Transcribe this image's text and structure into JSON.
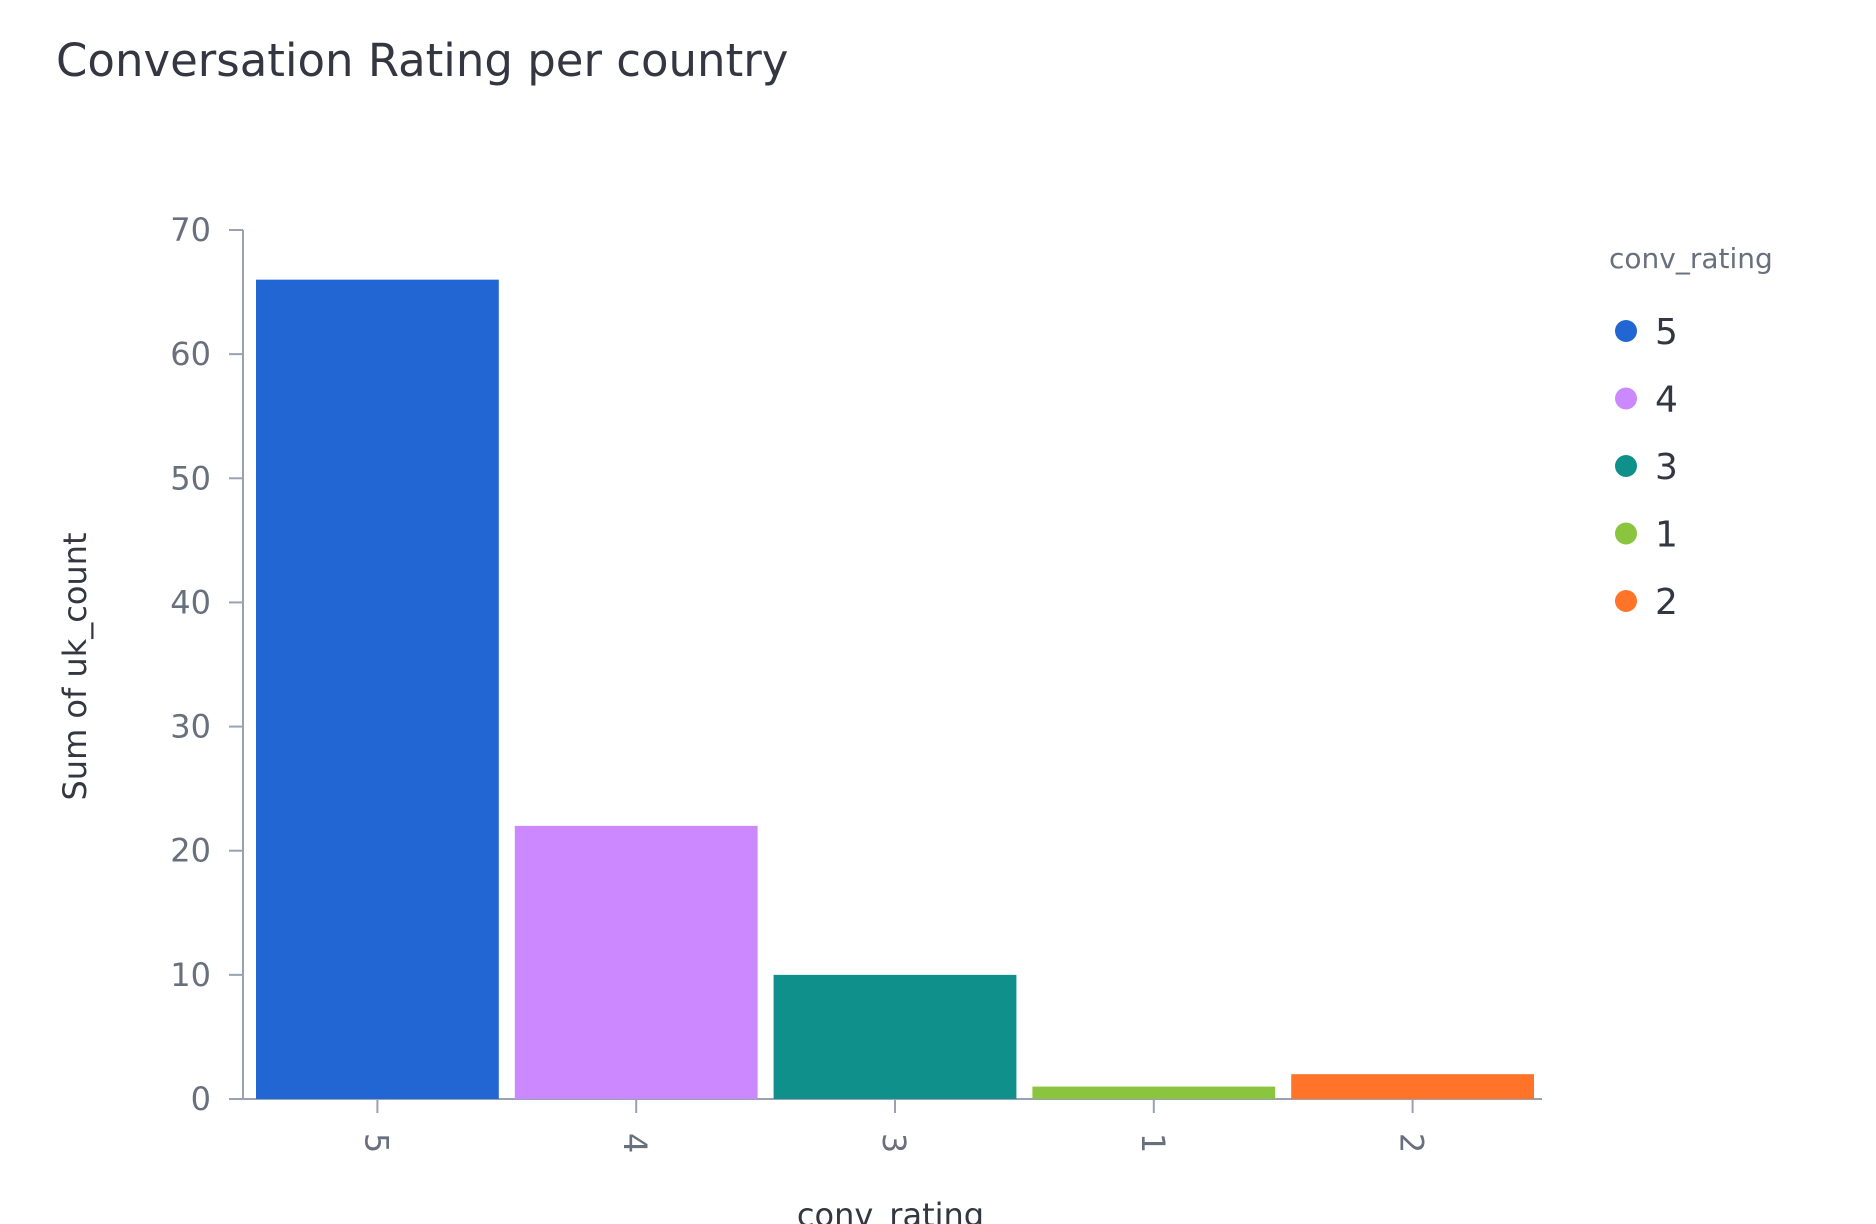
{
  "chart_data": {
    "type": "bar",
    "title": "Conversation Rating per country",
    "xlabel": "conv_rating",
    "ylabel": "Sum of uk_count",
    "categories": [
      "5",
      "4",
      "3",
      "1",
      "2"
    ],
    "values": [
      66,
      22,
      10,
      1,
      2
    ],
    "colors": [
      "#2266d3",
      "#cc88ff",
      "#10908a",
      "#8bc53f",
      "#ff7428"
    ],
    "ylim": [
      0,
      70
    ],
    "yticks": [
      0,
      10,
      20,
      30,
      40,
      50,
      60,
      70
    ],
    "grid": false,
    "x_tick_rotation": "rotated-90",
    "legend": {
      "title": "conv_rating",
      "placement": "top-right",
      "entries": [
        {
          "label": "5",
          "color": "#2266d3"
        },
        {
          "label": "4",
          "color": "#cc88ff"
        },
        {
          "label": "3",
          "color": "#10908a"
        },
        {
          "label": "1",
          "color": "#8bc53f"
        },
        {
          "label": "2",
          "color": "#ff7428"
        }
      ]
    }
  }
}
